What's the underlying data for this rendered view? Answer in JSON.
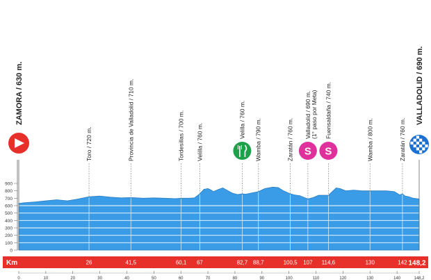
{
  "chart_data": {
    "type": "area",
    "title": "",
    "xlabel": "",
    "ylabel": "",
    "x_unit_label": "Km",
    "total_km": 148.2,
    "total_km_label": "148,2",
    "ylim": [
      0,
      900
    ],
    "y_ticks": [
      "0",
      "100",
      "200",
      "300",
      "400",
      "500",
      "600",
      "700",
      "800",
      "900"
    ],
    "x_ticks": [
      "0",
      "10",
      "20",
      "30",
      "40",
      "50",
      "60",
      "70",
      "80",
      "90",
      "100",
      "110",
      "120",
      "130",
      "140",
      "148,2"
    ],
    "x_tick_values": [
      0,
      10,
      20,
      30,
      40,
      50,
      60,
      70,
      80,
      90,
      100,
      110,
      120,
      130,
      140,
      148.2
    ],
    "fill_color": "#3a9ce6",
    "band_color": "#e8302a",
    "profile": [
      [
        0,
        630
      ],
      [
        2,
        640
      ],
      [
        6,
        650
      ],
      [
        10,
        665
      ],
      [
        14,
        680
      ],
      [
        18,
        665
      ],
      [
        22,
        690
      ],
      [
        26,
        720
      ],
      [
        30,
        730
      ],
      [
        34,
        715
      ],
      [
        38,
        705
      ],
      [
        41.5,
        710
      ],
      [
        46,
        700
      ],
      [
        50,
        705
      ],
      [
        54,
        700
      ],
      [
        58,
        695
      ],
      [
        60.1,
        700
      ],
      [
        63,
        700
      ],
      [
        65,
        705
      ],
      [
        67,
        760
      ],
      [
        68.5,
        820
      ],
      [
        70,
        830
      ],
      [
        71,
        815
      ],
      [
        72,
        790
      ],
      [
        74,
        820
      ],
      [
        75.5,
        840
      ],
      [
        77,
        810
      ],
      [
        79,
        770
      ],
      [
        81,
        750
      ],
      [
        82.7,
        760
      ],
      [
        84,
        755
      ],
      [
        86,
        770
      ],
      [
        88.7,
        790
      ],
      [
        91,
        830
      ],
      [
        94,
        850
      ],
      [
        96,
        845
      ],
      [
        98,
        800
      ],
      [
        100.5,
        760
      ],
      [
        102,
        745
      ],
      [
        104,
        735
      ],
      [
        107,
        690
      ],
      [
        109,
        710
      ],
      [
        111,
        740
      ],
      [
        114.6,
        740
      ],
      [
        116,
        790
      ],
      [
        117.5,
        840
      ],
      [
        119,
        830
      ],
      [
        121,
        800
      ],
      [
        124,
        810
      ],
      [
        127,
        800
      ],
      [
        130,
        800
      ],
      [
        133,
        800
      ],
      [
        136,
        800
      ],
      [
        139,
        790
      ],
      [
        141,
        745
      ],
      [
        142,
        760
      ],
      [
        143,
        730
      ],
      [
        144.5,
        720
      ],
      [
        146,
        700
      ],
      [
        148.2,
        690
      ]
    ],
    "points": [
      {
        "label": "ZAMORA / 630 m.",
        "km": 0,
        "alt": 630,
        "km_label": "",
        "icon": "start-flag-icon"
      },
      {
        "label": "Toro / 720 m.",
        "km": 26,
        "alt": 720,
        "km_label": "26"
      },
      {
        "label": "Provincia de Valladolid / 710 m.",
        "km": 41.5,
        "alt": 710,
        "km_label": "41,5"
      },
      {
        "label": "Tordesillas / 700 m.",
        "km": 60.1,
        "alt": 700,
        "km_label": "60,1"
      },
      {
        "label": "Velilla / 760 m.",
        "km": 67,
        "alt": 760,
        "km_label": "67"
      },
      {
        "label": "Velilla / 760 m.",
        "km": 82.7,
        "alt": 760,
        "km_label": "82,7",
        "icon": "feed-zone-icon"
      },
      {
        "label": "Wamba / 790 m.",
        "km": 88.7,
        "alt": 790,
        "km_label": "88,7"
      },
      {
        "label": "Zaratán / 760 m.",
        "km": 100.5,
        "alt": 760,
        "km_label": "100,5"
      },
      {
        "label": "Valladolid / 690 m.",
        "label2": "(1° paso por Meta)",
        "km": 107,
        "alt": 690,
        "km_label": "107",
        "icon": "sprint-icon"
      },
      {
        "label": "Fuensaldaña / 740 m.",
        "km": 114.6,
        "alt": 740,
        "km_label": "114,6",
        "icon": "sprint-icon"
      },
      {
        "label": "Wamba / 800 m.",
        "km": 130,
        "alt": 800,
        "km_label": "130"
      },
      {
        "label": "Zaratán / 760 m.",
        "km": 142,
        "alt": 760,
        "km_label": "142"
      },
      {
        "label": "VALLADOLID / 690 m.",
        "km": 148.2,
        "alt": 690,
        "km_label": "",
        "icon": "finish-flag-icon"
      }
    ],
    "icon_glyphs": {
      "sprint": "S"
    }
  }
}
